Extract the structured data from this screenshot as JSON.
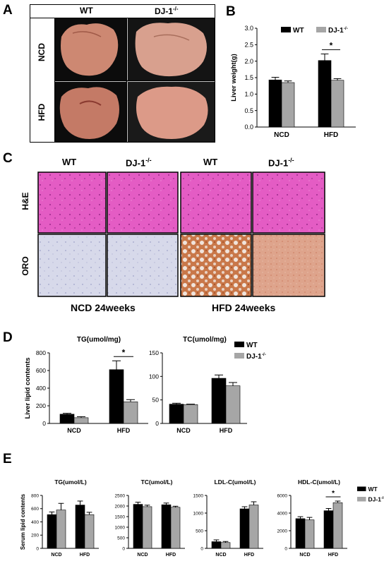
{
  "panel_A": {
    "letter": "A",
    "col_wt": "WT",
    "col_ko": "DJ-1",
    "col_ko_sup": "-/-",
    "row_ncd": "NCD",
    "row_hfd": "HFD",
    "colors": {
      "liver_wt": "#c8806a",
      "liver_ko": "#d99888",
      "photo_bg": "#0c0c0c"
    }
  },
  "panel_C": {
    "letter": "C",
    "headers": [
      "WT",
      "DJ-1",
      "WT",
      "DJ-1"
    ],
    "ko_sup": "-/-",
    "row_he": "H&E",
    "row_oro": "ORO",
    "group_ncd": "NCD 24weeks",
    "group_hfd": "HFD 24weeks",
    "colors": {
      "he": "#e45cc4",
      "oro_ncd": "#d7d9ea",
      "oro_hfd_wt": "#c9784a",
      "oro_hfd_ko": "#dea48c"
    }
  },
  "chart_data": [
    {
      "panel": "B",
      "type": "bar",
      "ylabel": "Liver weight(g)",
      "categories": [
        "NCD",
        "HFD"
      ],
      "series": [
        {
          "name": "WT",
          "values": [
            1.43,
            2.02
          ],
          "errors": [
            0.08,
            0.2
          ],
          "color": "#000000"
        },
        {
          "name": "DJ-1",
          "name_sup": "-/-",
          "values": [
            1.35,
            1.42
          ],
          "errors": [
            0.05,
            0.05
          ],
          "color": "#a6a6a6"
        }
      ],
      "ylim": [
        0,
        3.0
      ],
      "yticks": [
        "0.0",
        "0.5",
        "1.0",
        "1.5",
        "2.0",
        "2.5",
        "3.0"
      ],
      "significance": "*",
      "legend": "top"
    },
    {
      "panel": "D",
      "type": "bar",
      "title": "TG(umol/mg)",
      "ylabel": "Liver lipid contents",
      "categories": [
        "NCD",
        "HFD"
      ],
      "series": [
        {
          "name": "WT",
          "values": [
            105,
            610
          ],
          "errors": [
            10,
            100
          ],
          "color": "#000000"
        },
        {
          "name": "DJ-1",
          "values": [
            65,
            245
          ],
          "errors": [
            12,
            25
          ],
          "color": "#a6a6a6"
        }
      ],
      "ylim": [
        0,
        800
      ],
      "yticks": [
        "0",
        "200",
        "400",
        "600",
        "800"
      ],
      "significance": "*"
    },
    {
      "panel": "D",
      "type": "bar",
      "title": "TC(umol/mg)",
      "categories": [
        "NCD",
        "HFD"
      ],
      "series": [
        {
          "name": "WT",
          "values": [
            41,
            96
          ],
          "errors": [
            2,
            7
          ],
          "color": "#000000"
        },
        {
          "name": "DJ-1",
          "name_sup": "-/-",
          "values": [
            40,
            80
          ],
          "errors": [
            1,
            7
          ],
          "color": "#a6a6a6"
        }
      ],
      "ylim": [
        0,
        150
      ],
      "yticks": [
        "0",
        "50",
        "100",
        "150"
      ],
      "legend": "right"
    },
    {
      "panel": "E",
      "type": "bar",
      "title": "TG(umol/L)",
      "ylabel": "Serum lipid contents",
      "categories": [
        "NCD",
        "HFD"
      ],
      "series": [
        {
          "name": "WT",
          "values": [
            510,
            655
          ],
          "errors": [
            40,
            60
          ],
          "color": "#000000"
        },
        {
          "name": "DJ-1",
          "values": [
            580,
            510
          ],
          "errors": [
            100,
            35
          ],
          "color": "#a6a6a6"
        }
      ],
      "ylim": [
        0,
        800
      ],
      "yticks": [
        "0",
        "200",
        "400",
        "600",
        "800"
      ]
    },
    {
      "panel": "E",
      "type": "bar",
      "title": "TC(umol/L)",
      "categories": [
        "NCD",
        "HFD"
      ],
      "series": [
        {
          "name": "WT",
          "values": [
            2080,
            2060
          ],
          "errors": [
            100,
            80
          ],
          "color": "#000000"
        },
        {
          "name": "DJ-1",
          "values": [
            1970,
            1940
          ],
          "errors": [
            70,
            50
          ],
          "color": "#a6a6a6"
        }
      ],
      "ylim": [
        0,
        2500
      ],
      "yticks": [
        "0",
        "500",
        "1000",
        "1500",
        "2000",
        "2500"
      ]
    },
    {
      "panel": "E",
      "type": "bar",
      "title": "LDL-C(umol/L)",
      "categories": [
        "NCD",
        "HFD"
      ],
      "series": [
        {
          "name": "WT",
          "values": [
            190,
            1120
          ],
          "errors": [
            50,
            60
          ],
          "color": "#000000"
        },
        {
          "name": "DJ-1",
          "values": [
            165,
            1230
          ],
          "errors": [
            30,
            90
          ],
          "color": "#a6a6a6"
        }
      ],
      "ylim": [
        0,
        1500
      ],
      "yticks": [
        "0",
        "500",
        "1000",
        "1500"
      ]
    },
    {
      "panel": "E",
      "type": "bar",
      "title": "HDL-C(umol/L)",
      "categories": [
        "NCD",
        "HFD"
      ],
      "series": [
        {
          "name": "WT",
          "values": [
            3370,
            4270
          ],
          "errors": [
            220,
            250
          ],
          "color": "#000000"
        },
        {
          "name": "DJ-1",
          "name_sup": "-/-",
          "values": [
            3230,
            5180
          ],
          "errors": [
            280,
            180
          ],
          "color": "#a6a6a6"
        }
      ],
      "ylim": [
        0,
        6000
      ],
      "yticks": [
        "0",
        "2000",
        "4000",
        "6000"
      ],
      "significance": "*",
      "legend": "right"
    }
  ]
}
